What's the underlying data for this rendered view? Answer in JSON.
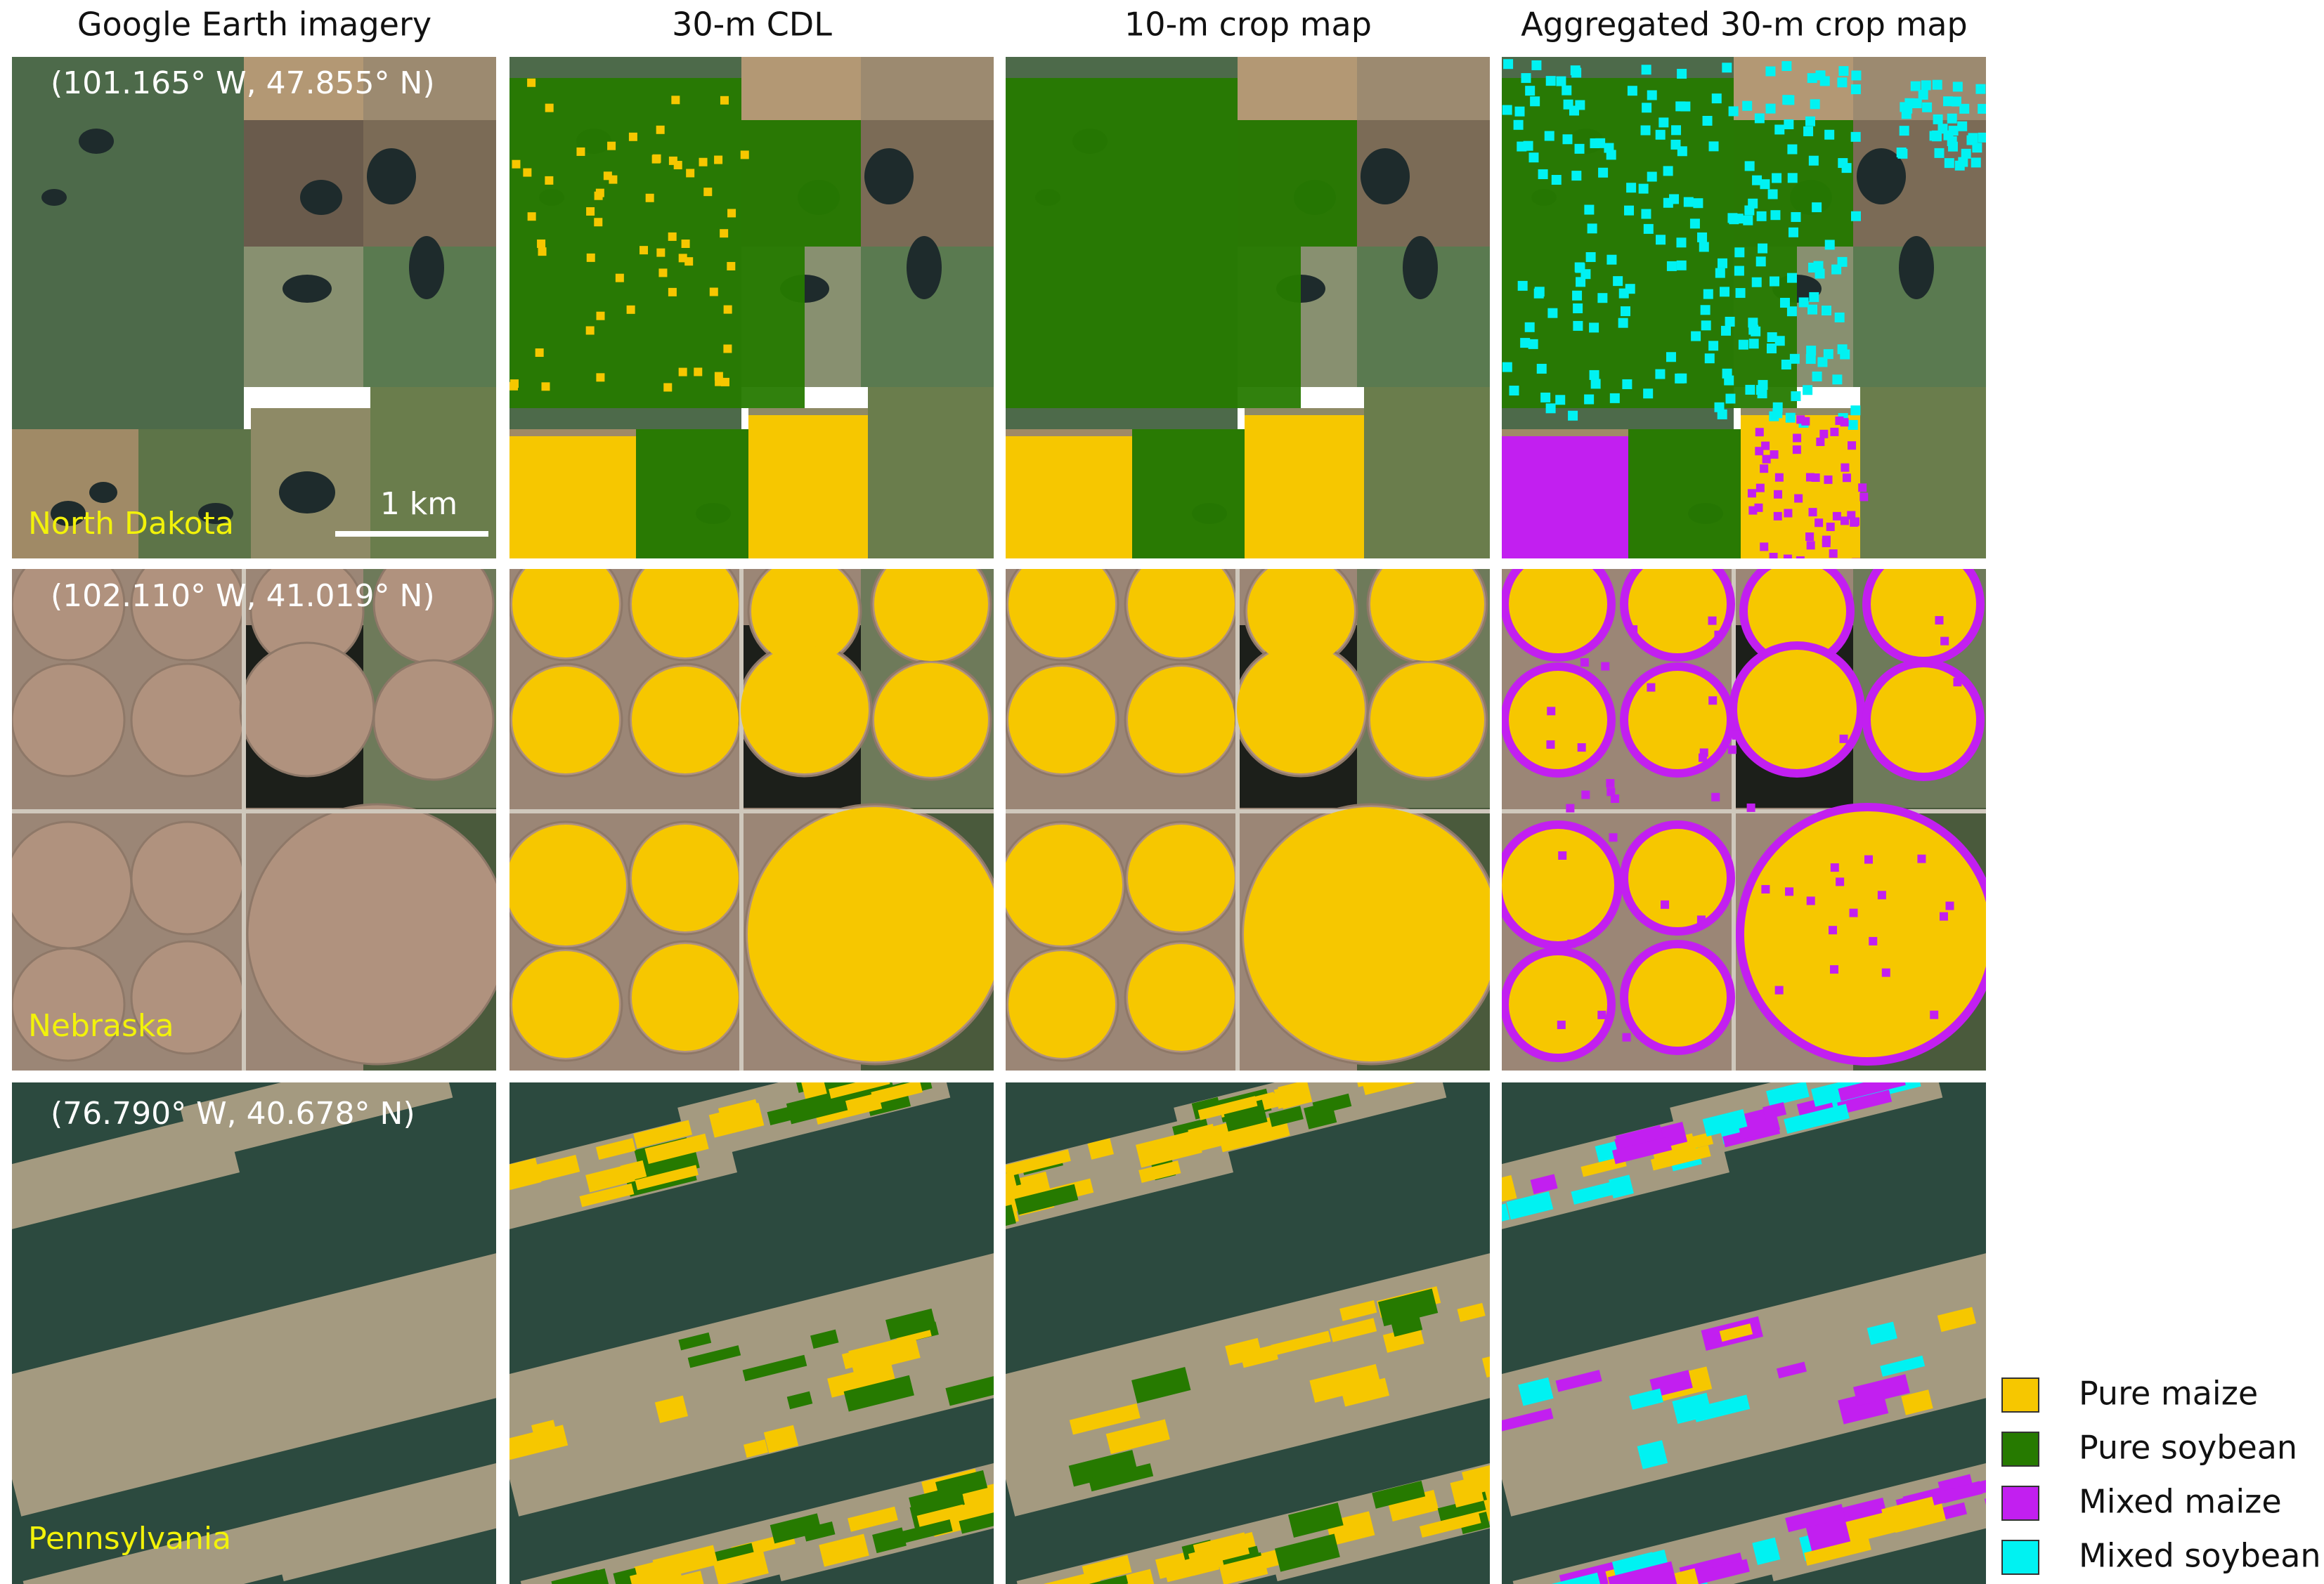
{
  "column_headers": [
    "Google Earth imagery",
    "30-m CDL",
    "10-m crop map",
    "Aggregated 30-m crop map"
  ],
  "rows": [
    {
      "coordinates": "(101.165° W, 47.855° N)",
      "region": "North Dakota"
    },
    {
      "coordinates": "(102.110° W, 41.019° N)",
      "region": "Nebraska"
    },
    {
      "coordinates": "(76.790° W, 40.678° N)",
      "region": "Pennsylvania"
    }
  ],
  "scale_bar": "1 km",
  "legend": [
    {
      "label": "Pure maize",
      "color": "#f6c700"
    },
    {
      "label": "Pure soybean",
      "color": "#267a00"
    },
    {
      "label": "Mixed maize",
      "color": "#c21ff0"
    },
    {
      "label": "Mixed soybean",
      "color": "#00f2f2"
    }
  ]
}
